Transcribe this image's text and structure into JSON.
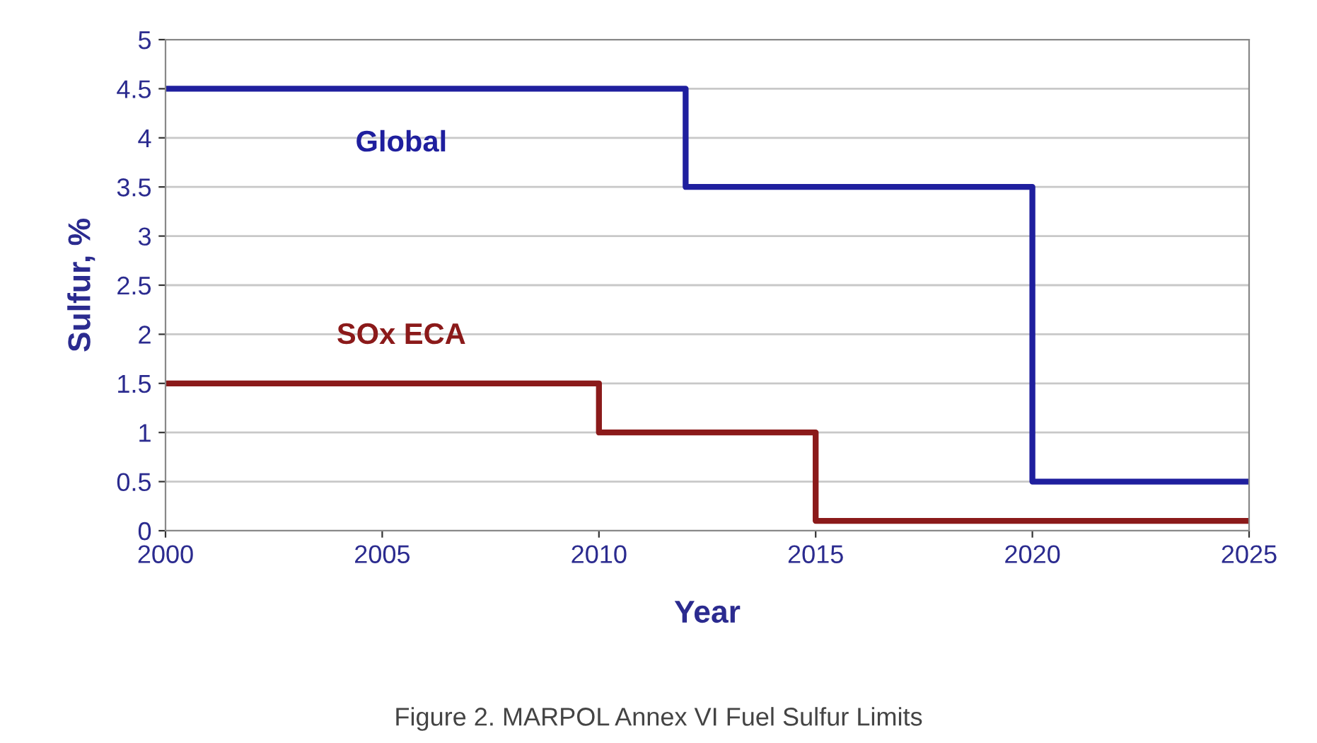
{
  "chart_data": {
    "type": "step",
    "xlabel": "Year",
    "ylabel": "Sulfur, %",
    "series": [
      {
        "name": "Global",
        "color": "#1f1f9e",
        "x": [
          2000,
          2012,
          2020,
          2025
        ],
        "values": [
          4.5,
          3.5,
          0.5,
          0.5
        ]
      },
      {
        "name": "SOx ECA",
        "color": "#8b1a1a",
        "x": [
          2000,
          2010,
          2015,
          2025
        ],
        "values": [
          1.5,
          1.0,
          0.1,
          0.1
        ]
      }
    ],
    "xlim": [
      2000,
      2025
    ],
    "xticks": [
      2000,
      2005,
      2010,
      2015,
      2020,
      2025
    ],
    "ylim": [
      0,
      5
    ],
    "yticks": [
      0,
      0.5,
      1,
      1.5,
      2,
      2.5,
      3,
      3.5,
      4,
      4.5,
      5
    ],
    "grid": "y",
    "marker": "none",
    "line_style": "solid",
    "annotations": [
      "Figure 2. MARPOL Annex VI Fuel Sulfur Limits"
    ]
  }
}
